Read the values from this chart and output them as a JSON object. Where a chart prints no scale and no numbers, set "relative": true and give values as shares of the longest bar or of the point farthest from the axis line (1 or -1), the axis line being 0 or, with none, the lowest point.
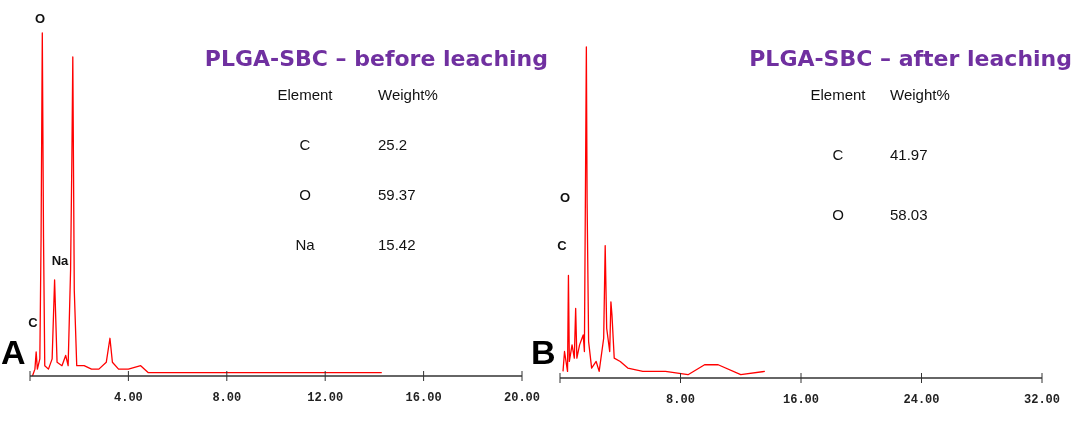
{
  "chart_data": [
    {
      "type": "line",
      "title": "PLGA-SBC – before leaching",
      "relative": true,
      "xlim": [
        0,
        20
      ],
      "xticks": [
        {
          "value": 0,
          "label": null
        },
        {
          "value": 4,
          "label": "4.00"
        },
        {
          "value": 8,
          "label": "8.00"
        },
        {
          "value": 12,
          "label": "12.00"
        },
        {
          "value": 16,
          "label": "16.00"
        },
        {
          "value": 20,
          "label": "20.00"
        }
      ],
      "series": [
        {
          "color": "#ff0000",
          "x": [
            0.1,
            0.2,
            0.25,
            0.3,
            0.4,
            0.45,
            0.5,
            0.55,
            0.6,
            0.75,
            0.9,
            1.0,
            1.1,
            1.3,
            1.45,
            1.55,
            1.65,
            1.7,
            1.74,
            1.8,
            1.9,
            2.2,
            2.5,
            2.8,
            3.1,
            3.25,
            3.35,
            3.6,
            4.0,
            4.5,
            4.8,
            5.5,
            6.5,
            8,
            10,
            12,
            14.3
          ],
          "values": [
            0,
            0.02,
            0.07,
            0.02,
            0.05,
            0.4,
            1.0,
            0.4,
            0.03,
            0.02,
            0.05,
            0.28,
            0.04,
            0.03,
            0.06,
            0.03,
            0.31,
            0.62,
            0.93,
            0.25,
            0.03,
            0.03,
            0.02,
            0.02,
            0.04,
            0.11,
            0.04,
            0.02,
            0.02,
            0.03,
            0.01,
            0.01,
            0.01,
            0.01,
            0.01,
            0.01,
            0.01
          ]
        }
      ],
      "annotations": [
        "O",
        "Na",
        "C",
        "A",
        "Element",
        "Weight%",
        "C",
        "25.2",
        "O",
        "59.37",
        "Na",
        "15.42"
      ]
    },
    {
      "type": "line",
      "title": "PLGA-SBC – after leaching",
      "relative": true,
      "xlim": [
        0,
        32
      ],
      "xticks": [
        {
          "value": 0,
          "label": null
        },
        {
          "value": 8,
          "label": "8.00"
        },
        {
          "value": 16,
          "label": "16.00"
        },
        {
          "value": 24,
          "label": "24.00"
        },
        {
          "value": 32,
          "label": "32.00"
        }
      ],
      "series": [
        {
          "color": "#ff0000",
          "x": [
            0.2,
            0.3,
            0.5,
            0.56,
            0.62,
            0.8,
            0.95,
            1.04,
            1.12,
            1.3,
            1.54,
            1.62,
            1.75,
            1.8,
            1.9,
            2.1,
            2.4,
            2.6,
            2.9,
            3.0,
            3.1,
            3.3,
            3.38,
            3.45,
            3.6,
            4.0,
            4.5,
            5.5,
            7,
            8.5,
            9.6,
            10.5,
            12,
            13.6
          ],
          "values": [
            0.02,
            0.08,
            0.02,
            0.31,
            0.05,
            0.1,
            0.06,
            0.21,
            0.06,
            0.1,
            0.13,
            0.08,
            1.0,
            0.53,
            0.11,
            0.03,
            0.05,
            0.02,
            0.12,
            0.4,
            0.15,
            0.08,
            0.23,
            0.19,
            0.06,
            0.05,
            0.03,
            0.02,
            0.02,
            0.01,
            0.04,
            0.04,
            0.01,
            0.02
          ]
        }
      ],
      "annotations": [
        "O",
        "C",
        "B",
        "Element",
        "Weight%",
        "C",
        "41.97",
        "O",
        "58.03"
      ]
    }
  ]
}
